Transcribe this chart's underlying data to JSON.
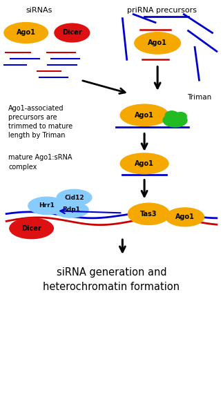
{
  "bg_color": "#ffffff",
  "fig_width": 3.23,
  "fig_height": 5.72,
  "dpi": 100,
  "title_top_left": "siRNAs",
  "title_top_right": "priRNA precursors",
  "label_step2": "Ago1-associated\nprecursors are\ntrimmed to mature\nlength by Triman",
  "label_step3": "mature Ago1:sRNA\ncomplex",
  "label_bottom": "siRNA generation and\nheterochromatin formation",
  "label_triman": "Triman",
  "ago1_color": "#F5A800",
  "dicer_color": "#DD1111",
  "triman_color": "#22BB22",
  "hrr1_color": "#88CCFF",
  "cid12_color": "#88CCFF",
  "rdp1_color": "#88CCFF",
  "line_red": "#CC0000",
  "line_blue": "#0000CC",
  "text_color": "#000000",
  "xlim": [
    0,
    10
  ],
  "ylim": [
    0,
    19
  ]
}
